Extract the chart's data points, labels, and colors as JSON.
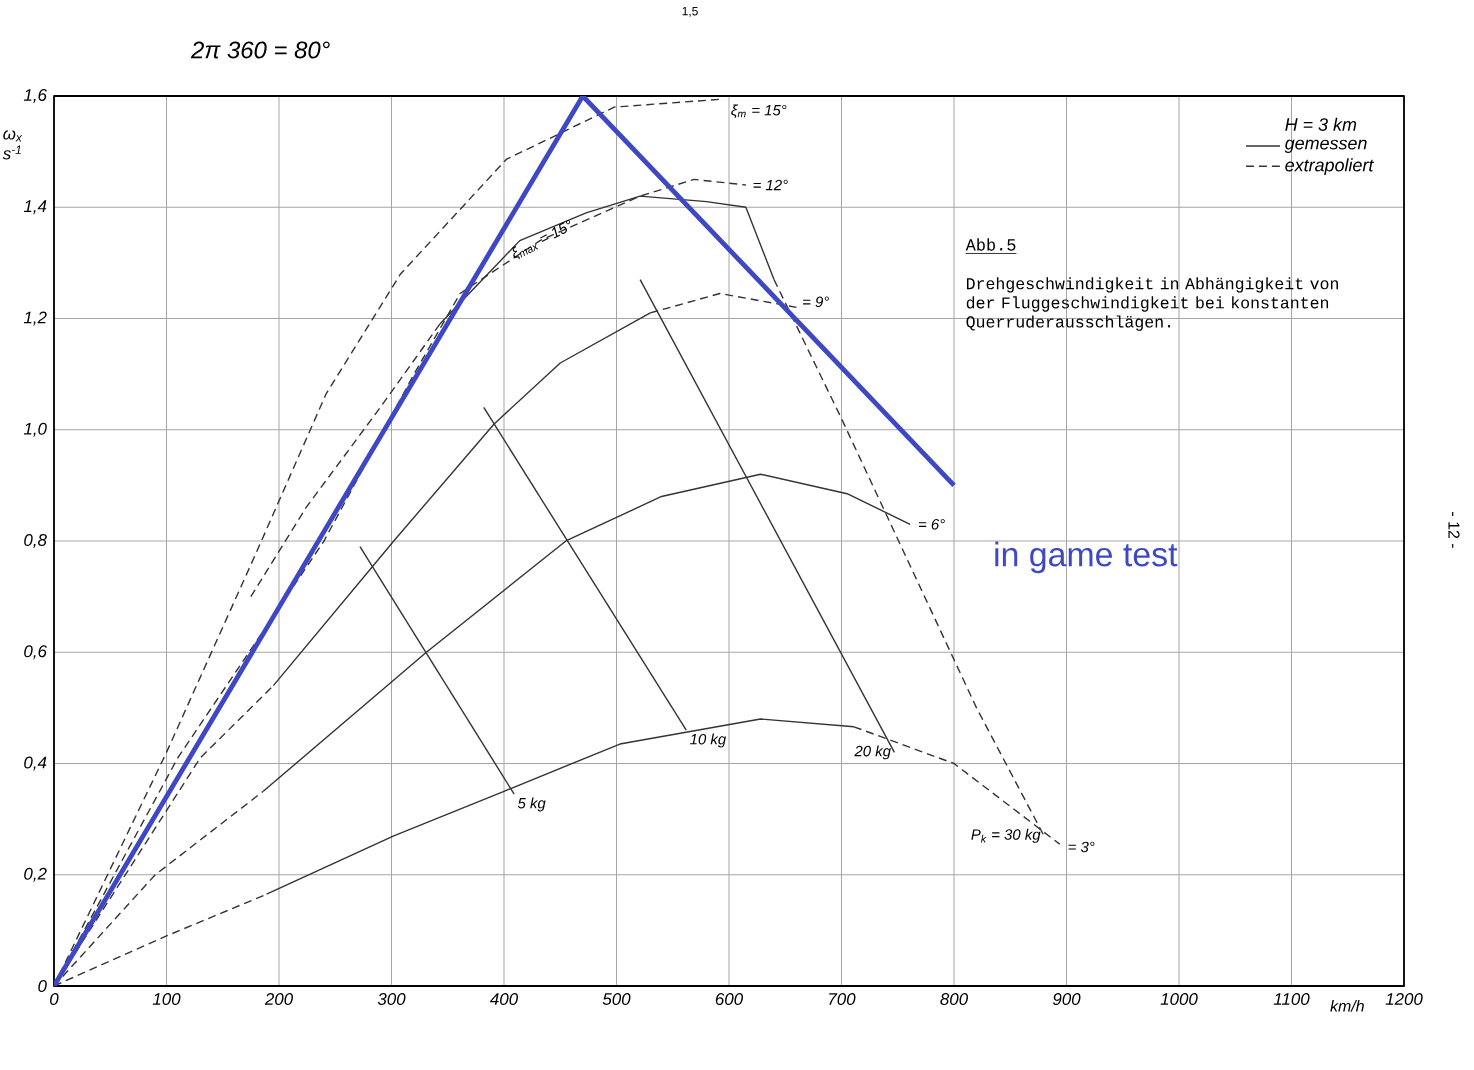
{
  "chart_data": {
    "type": "line",
    "xlabel": "km/h",
    "ylabel": "ω$_{x}$ s$^{-1}$",
    "legend_title": "H = 3 km",
    "legend": "top right",
    "grid": true,
    "marker": "none",
    "xlim": [
      0,
      1200
    ],
    "ylim": [
      0,
      1.6
    ],
    "xticks": [
      0,
      100,
      200,
      300,
      400,
      500,
      600,
      700,
      800,
      900,
      1000,
      1100,
      1200
    ],
    "yticks": [
      0,
      {
        "value": 0.2,
        "label": "0,2"
      },
      {
        "value": 0.4,
        "label": "0,4"
      },
      {
        "value": 0.6,
        "label": "0,6"
      },
      {
        "value": 0.8,
        "label": "0,8"
      },
      {
        "value": 1.0,
        "label": "1,0"
      },
      {
        "value": 1.2,
        "label": "1,2"
      },
      {
        "value": 1.4,
        "label": "1,4"
      },
      {
        "value": 1.6,
        "label": "1,6"
      }
    ],
    "series": [
      {
        "name": "gemessen",
        "color": "#333333",
        "line_style": "solid",
        "x": [
          343,
          414,
          473,
          521,
          580,
          615,
          640
        ],
        "values": [
          1.19,
          1.34,
          1.39,
          1.42,
          1.41,
          1.4,
          1.27
        ]
      },
      {
        "name": "extrapoliert",
        "color": "#333333",
        "line_style": "dashed",
        "x": [
          0,
          100,
          180,
          242,
          308,
          402,
          498,
          592
        ],
        "values": [
          0,
          0.42,
          0.78,
          1.065,
          1.28,
          1.486,
          1.58,
          1.594
        ]
      },
      {
        "color": "#333333",
        "line_style": "dashed",
        "x": [
          175,
          224,
          290,
          343
        ],
        "values": [
          0.7,
          0.86,
          1.04,
          1.19
        ]
      },
      {
        "color": "#333333",
        "line_style": "dashed",
        "x": [
          640,
          700,
          760,
          820,
          880
        ],
        "values": [
          1.27,
          1.02,
          0.76,
          0.5,
          0.27
        ]
      },
      {
        "color": "#333333",
        "line_style": "dashed",
        "x": [
          0,
          110,
          240,
          320,
          361,
          432,
          521,
          569,
          615
        ],
        "values": [
          0,
          0.41,
          0.8,
          1.1,
          1.245,
          1.34,
          1.42,
          1.45,
          1.44
        ]
      },
      {
        "color": "#333333",
        "line_style": "dashed",
        "x": [
          0,
          130,
          195
        ],
        "values": [
          0,
          0.41,
          0.54
        ]
      },
      {
        "color": "#333333",
        "line_style": "solid",
        "x": [
          195,
          302,
          391,
          450,
          530
        ],
        "values": [
          0.54,
          0.8,
          1.01,
          1.12,
          1.21
        ]
      },
      {
        "color": "#333333",
        "line_style": "dashed",
        "x": [
          530,
          592,
          660
        ],
        "values": [
          1.21,
          1.245,
          1.22
        ]
      },
      {
        "color": "#333333",
        "line_style": "dashed",
        "x": [
          0,
          90,
          186
        ],
        "values": [
          0,
          0.2,
          0.35
        ]
      },
      {
        "color": "#333333",
        "line_style": "solid",
        "x": [
          186,
          331,
          455,
          540,
          628,
          705,
          761
        ],
        "values": [
          0.35,
          0.6,
          0.8,
          0.88,
          0.92,
          0.885,
          0.83
        ]
      },
      {
        "color": "#333333",
        "line_style": "dashed",
        "x": [
          0,
          100,
          189
        ],
        "values": [
          0,
          0.09,
          0.165
        ]
      },
      {
        "color": "#333333",
        "line_style": "solid",
        "x": [
          189,
          302,
          400,
          503,
          628,
          711
        ],
        "values": [
          0.165,
          0.27,
          0.35,
          0.435,
          0.48,
          0.466
        ]
      },
      {
        "color": "#333333",
        "line_style": "dashed",
        "x": [
          711,
          800,
          894
        ],
        "values": [
          0.466,
          0.4,
          0.255
        ]
      },
      {
        "color": "#333333",
        "line_style": "solid",
        "x": [
          272,
          409
        ],
        "values": [
          0.79,
          0.345
        ]
      },
      {
        "color": "#333333",
        "line_style": "solid",
        "x": [
          382,
          562
        ],
        "values": [
          1.04,
          0.46
        ]
      },
      {
        "color": "#333333",
        "line_style": "solid",
        "x": [
          521,
          747
        ],
        "values": [
          1.27,
          0.42
        ]
      },
      {
        "name": "in game test",
        "color": "#3f48c4",
        "line_style": "solid",
        "x": [
          0,
          470,
          800
        ],
        "values": [
          0,
          1.6,
          0.9
        ]
      }
    ],
    "annotations": [
      "2π 360 = 80°",
      "1,5",
      "- 12 -",
      "Abb.5",
      "Drehgeschwindigkeit in Abhängigkeit von der Fluggeschwindigkeit bei konstanten Querruderausschlägen.",
      {
        "text": "ξ$_{max}$ = 15°",
        "x": 400,
        "y": 1.33
      },
      {
        "text": "ξ$_{m}$ = 15°",
        "x": 595,
        "y": 1.594
      },
      {
        "text": "= 12°",
        "x": 618,
        "y": 1.44
      },
      {
        "text": "= 9°",
        "x": 662,
        "y": 1.23
      },
      {
        "text": "= 6°",
        "x": 765,
        "y": 0.83
      },
      {
        "text": "= 3°",
        "x": 898,
        "y": 0.25
      },
      {
        "text": "5 kg",
        "x": 409,
        "y": 0.345
      },
      {
        "text": "10 kg",
        "x": 562,
        "y": 0.46
      },
      {
        "text": "20 kg",
        "x": 747,
        "y": 0.42
      },
      {
        "text": "P$_{k}$ = 30 kg",
        "x": 880,
        "y": 0.27
      }
    ]
  }
}
